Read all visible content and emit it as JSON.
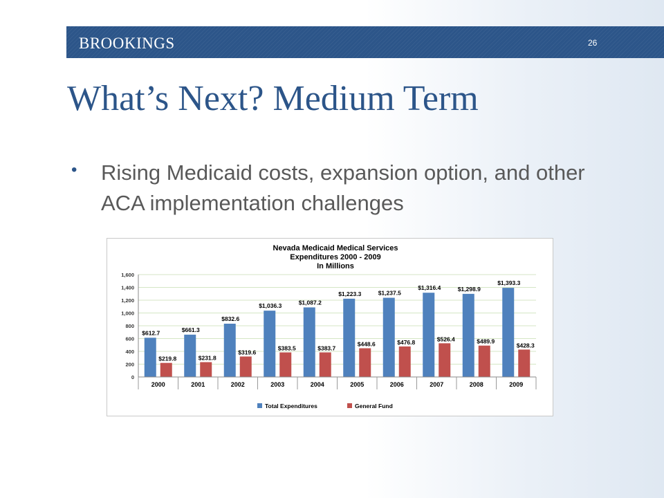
{
  "header": {
    "brand": "BROOKINGS",
    "page_number": "26"
  },
  "slide": {
    "title": "What’s Next? Medium Term",
    "bullets": [
      "Rising Medicaid costs, expansion option, and other ACA implementation challenges"
    ]
  },
  "colors": {
    "banner": "#2c5589",
    "title": "#2c5589",
    "series_total": "#4f81bd",
    "series_general": "#c0504d"
  },
  "chart_data": {
    "type": "bar",
    "title": "Nevada Medicaid Medical Services",
    "subtitle": [
      "Expenditures 2000 - 2009",
      "In Millions"
    ],
    "categories": [
      "2000",
      "2001",
      "2002",
      "2003",
      "2004",
      "2005",
      "2006",
      "2007",
      "2008",
      "2009"
    ],
    "series": [
      {
        "name": "Total Expenditures",
        "color": "#4f81bd",
        "values": [
          612.7,
          661.3,
          832.6,
          1036.3,
          1087.2,
          1223.3,
          1237.5,
          1316.4,
          1298.9,
          1393.3
        ],
        "labels": [
          "$612.7",
          "$661.3",
          "$832.6",
          "$1,036.3",
          "$1,087.2",
          "$1,223.3",
          "$1,237.5",
          "$1,316.4",
          "$1,298.9",
          "$1,393.3"
        ]
      },
      {
        "name": "General Fund",
        "color": "#c0504d",
        "values": [
          219.8,
          231.8,
          319.6,
          383.5,
          383.7,
          448.6,
          476.8,
          526.4,
          489.9,
          428.3
        ],
        "labels": [
          "$219.8",
          "$231.8",
          "$319.6",
          "$383.5",
          "$383.7",
          "$448.6",
          "$476.8",
          "$526.4",
          "$489.9",
          "$428.3"
        ]
      }
    ],
    "yticks": [
      "0",
      "200",
      "400",
      "600",
      "800",
      "1,000",
      "1,200",
      "1,400",
      "1,600"
    ],
    "ylim": [
      0,
      1600
    ],
    "grid": true,
    "legend": "bottom"
  }
}
